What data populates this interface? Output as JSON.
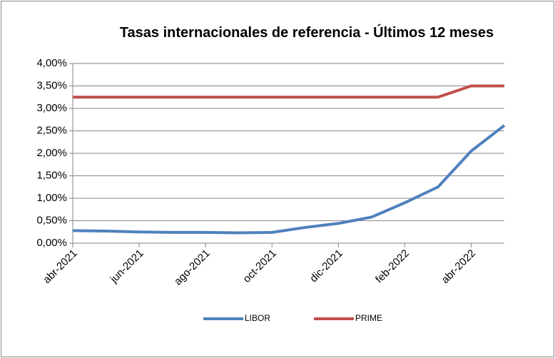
{
  "chart_data": {
    "type": "line",
    "title": "Tasas internacionales de referencia - Últimos 12 meses",
    "x": [
      "2021-04",
      "2021-05",
      "2021-06",
      "2021-07",
      "2021-08",
      "2021-09",
      "2021-10",
      "2021-11",
      "2021-12",
      "2022-01",
      "2022-02",
      "2022-03",
      "2022-04",
      "2022-05"
    ],
    "series": [
      {
        "name": "LIBOR",
        "color": "#4f81bd",
        "values": [
          0.28,
          0.27,
          0.25,
          0.24,
          0.24,
          0.23,
          0.24,
          0.35,
          0.44,
          0.58,
          0.9,
          1.25,
          2.05,
          2.62
        ]
      },
      {
        "name": "PRIME",
        "color": "#c0504d",
        "values": [
          3.25,
          3.25,
          3.25,
          3.25,
          3.25,
          3.25,
          3.25,
          3.25,
          3.25,
          3.25,
          3.25,
          3.25,
          3.5,
          3.5
        ]
      }
    ],
    "xlim": [
      "2021-04",
      "2022-05"
    ],
    "xticks": [
      {
        "value": "2021-04",
        "label": "abr-2021"
      },
      {
        "value": "2021-06",
        "label": "jun-2021"
      },
      {
        "value": "2021-08",
        "label": "ago-2021"
      },
      {
        "value": "2021-10",
        "label": "oct-2021"
      },
      {
        "value": "2021-12",
        "label": "dic-2021"
      },
      {
        "value": "2022-02",
        "label": "feb-2022"
      },
      {
        "value": "2022-04",
        "label": "abr-2022"
      }
    ],
    "ylim": [
      0,
      4
    ],
    "yticks": [
      {
        "value": 0,
        "label": "0,00%"
      },
      {
        "value": 0.5,
        "label": "0,50%"
      },
      {
        "value": 1,
        "label": "1,00%"
      },
      {
        "value": 1.5,
        "label": "1,50%"
      },
      {
        "value": 2,
        "label": "2,00%"
      },
      {
        "value": 2.5,
        "label": "2,50%"
      },
      {
        "value": 3,
        "label": "3,00%"
      },
      {
        "value": 3.5,
        "label": "3,50%"
      },
      {
        "value": 4,
        "label": "4,00%"
      }
    ],
    "grid": true,
    "legend": "bottom"
  }
}
